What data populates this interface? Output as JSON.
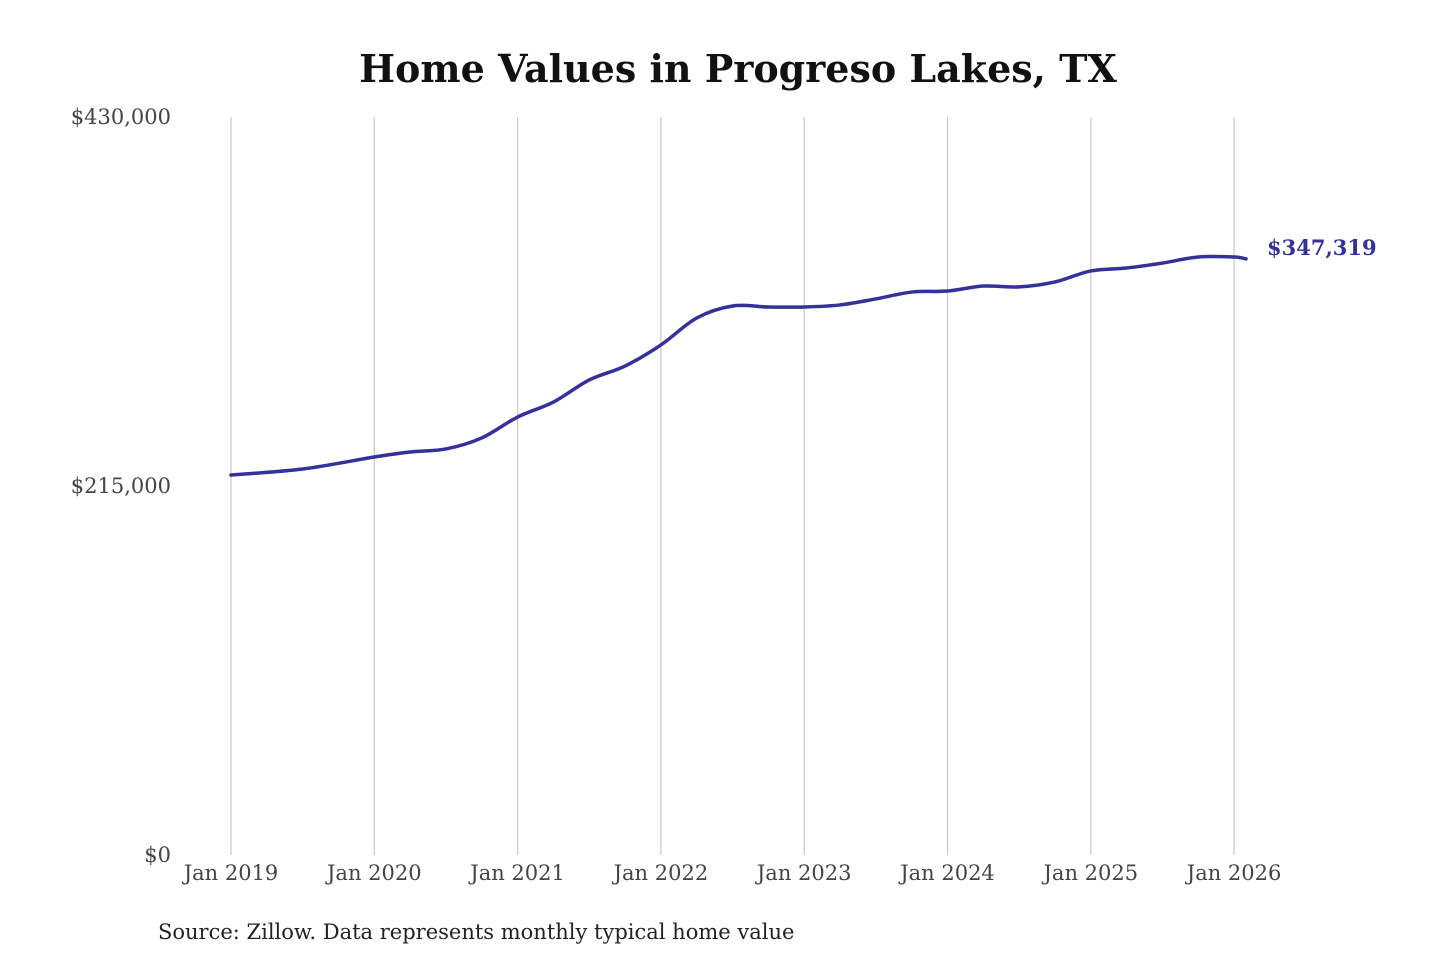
{
  "chart_data": {
    "type": "line",
    "title": "Home Values in Progreso Lakes, TX",
    "xlabel": "",
    "ylabel": "",
    "source": "Source: Zillow. Data represents monthly typical home value",
    "ylim": [
      0,
      430000
    ],
    "y_ticks": [
      {
        "value": 0,
        "label": "$0"
      },
      {
        "value": 215000,
        "label": "$215,000"
      },
      {
        "value": 430000,
        "label": "$430,000"
      }
    ],
    "x_ticks": [
      {
        "value": 2019,
        "label": "Jan 2019"
      },
      {
        "value": 2020,
        "label": "Jan 2020"
      },
      {
        "value": 2021,
        "label": "Jan 2021"
      },
      {
        "value": 2022,
        "label": "Jan 2022"
      },
      {
        "value": 2023,
        "label": "Jan 2023"
      },
      {
        "value": 2024,
        "label": "Jan 2024"
      },
      {
        "value": 2025,
        "label": "Jan 2025"
      },
      {
        "value": 2026,
        "label": "Jan 2026"
      }
    ],
    "grid": "vertical",
    "color": "#35309a",
    "end_label": "$347,319",
    "series": [
      {
        "name": "Typical home value",
        "x": [
          2019.0,
          2019.5,
          2020.0,
          2020.25,
          2020.5,
          2020.75,
          2021.0,
          2021.25,
          2021.5,
          2021.75,
          2022.0,
          2022.25,
          2022.5,
          2022.75,
          2023.0,
          2023.25,
          2023.5,
          2023.75,
          2024.0,
          2024.25,
          2024.5,
          2024.75,
          2025.0,
          2025.25,
          2025.5,
          2025.75,
          2026.0,
          2026.083
        ],
        "values": [
          221400,
          224900,
          231900,
          234800,
          236600,
          243000,
          255200,
          263900,
          276800,
          284900,
          297200,
          312900,
          319900,
          319300,
          319300,
          320500,
          324000,
          328000,
          328600,
          331500,
          331000,
          333900,
          340300,
          342000,
          344900,
          348400,
          348400,
          347319
        ]
      }
    ]
  }
}
